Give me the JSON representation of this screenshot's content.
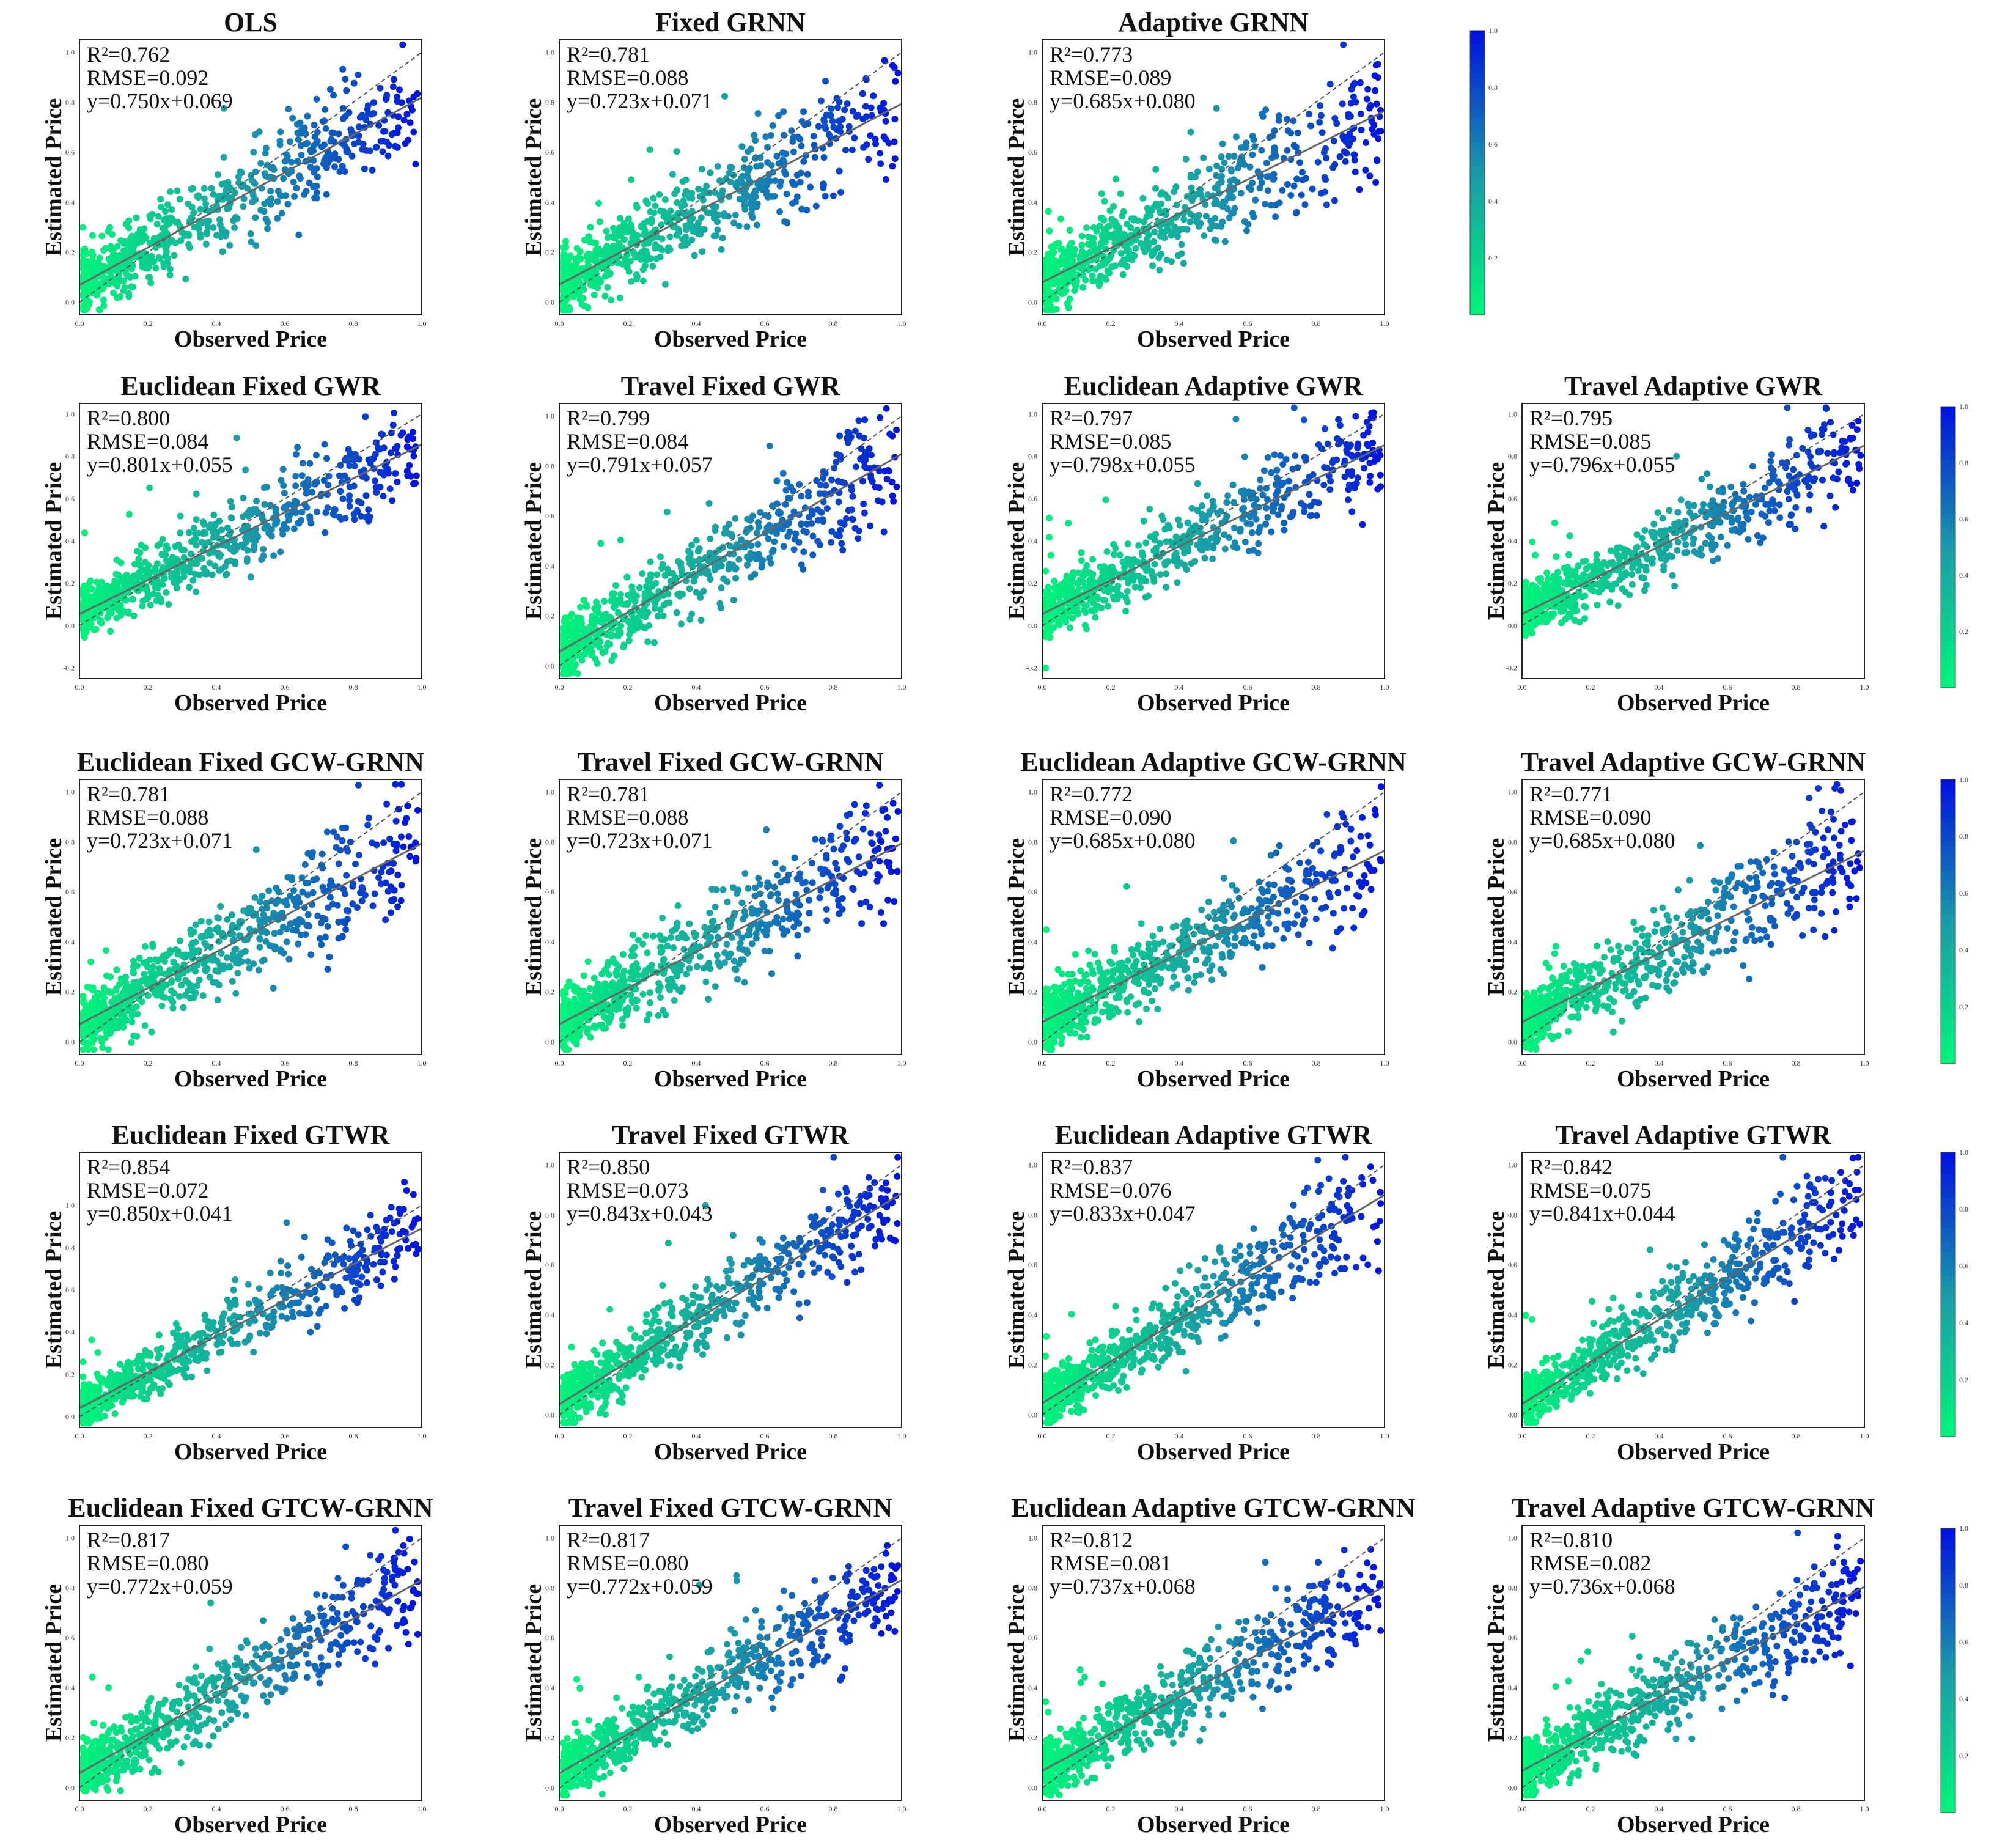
{
  "chart_data": [
    {
      "type": "scatter",
      "title": "OLS",
      "xlabel": "Observed Price",
      "ylabel": "Estimated Price",
      "r2": "R²=0.762",
      "rmse": "RMSE=0.092",
      "eq": "y=0.750x+0.069",
      "slope": 0.75,
      "intercept": 0.069,
      "xlim": [
        0,
        1
      ],
      "ylim": [
        -0.05,
        1.05
      ],
      "xticks": [
        "0.0",
        "0.2",
        "0.4",
        "0.6",
        "0.8",
        "1.0"
      ],
      "yticks": [
        "0.0",
        "0.2",
        "0.4",
        "0.6",
        "0.8",
        "1.0"
      ],
      "spread": 0.08,
      "noise_seed": 1
    },
    {
      "type": "scatter",
      "title": "Fixed GRNN",
      "xlabel": "Observed Price",
      "ylabel": "Estimated Price",
      "r2": "R²=0.781",
      "rmse": "RMSE=0.088",
      "eq": "y=0.723x+0.071",
      "slope": 0.723,
      "intercept": 0.071,
      "xlim": [
        0,
        1
      ],
      "ylim": [
        -0.05,
        1.05
      ],
      "xticks": [
        "0.0",
        "0.2",
        "0.4",
        "0.6",
        "0.8",
        "1.0"
      ],
      "yticks": [
        "0.0",
        "0.2",
        "0.4",
        "0.6",
        "0.8",
        "1.0"
      ],
      "spread": 0.08,
      "noise_seed": 2
    },
    {
      "type": "scatter",
      "title": "Adaptive GRNN",
      "xlabel": "Observed Price",
      "ylabel": "Estimated Price",
      "r2": "R²=0.773",
      "rmse": "RMSE=0.089",
      "eq": "y=0.685x+0.080",
      "slope": 0.685,
      "intercept": 0.08,
      "xlim": [
        0,
        1
      ],
      "ylim": [
        -0.05,
        1.05
      ],
      "xticks": [
        "0.0",
        "0.2",
        "0.4",
        "0.6",
        "0.8",
        "1.0"
      ],
      "yticks": [
        "0.0",
        "0.2",
        "0.4",
        "0.6",
        "0.8",
        "1.0"
      ],
      "spread": 0.08,
      "noise_seed": 3
    },
    {
      "type": "scatter",
      "title": "Euclidean Fixed GWR",
      "xlabel": "Observed Price",
      "ylabel": "Estimated Price",
      "r2": "R²=0.800",
      "rmse": "RMSE=0.084",
      "eq": "y=0.801x+0.055",
      "slope": 0.801,
      "intercept": 0.055,
      "xlim": [
        0,
        1
      ],
      "ylim": [
        -0.25,
        1.05
      ],
      "xticks": [
        "0.0",
        "0.2",
        "0.4",
        "0.6",
        "0.8",
        "1.0"
      ],
      "yticks": [
        "-0.2",
        "0.0",
        "0.2",
        "0.4",
        "0.6",
        "0.8",
        "1.0"
      ],
      "spread": 0.075,
      "noise_seed": 4
    },
    {
      "type": "scatter",
      "title": "Travel Fixed GWR",
      "xlabel": "Observed Price",
      "ylabel": "Estimated Price",
      "r2": "R²=0.799",
      "rmse": "RMSE=0.084",
      "eq": "y=0.791x+0.057",
      "slope": 0.791,
      "intercept": 0.057,
      "xlim": [
        0,
        1
      ],
      "ylim": [
        -0.05,
        1.05
      ],
      "xticks": [
        "0.0",
        "0.2",
        "0.4",
        "0.6",
        "0.8",
        "1.0"
      ],
      "yticks": [
        "0.0",
        "0.2",
        "0.4",
        "0.6",
        "0.8",
        "1.0"
      ],
      "spread": 0.075,
      "noise_seed": 5
    },
    {
      "type": "scatter",
      "title": "Euclidean Adaptive GWR",
      "xlabel": "Observed Price",
      "ylabel": "Estimated Price",
      "r2": "R²=0.797",
      "rmse": "RMSE=0.085",
      "eq": "y=0.798x+0.055",
      "slope": 0.798,
      "intercept": 0.055,
      "xlim": [
        0,
        1
      ],
      "ylim": [
        -0.25,
        1.05
      ],
      "xticks": [
        "0.0",
        "0.2",
        "0.4",
        "0.6",
        "0.8",
        "1.0"
      ],
      "yticks": [
        "-0.2",
        "0.0",
        "0.2",
        "0.4",
        "0.6",
        "0.8",
        "1.0"
      ],
      "spread": 0.075,
      "noise_seed": 6
    },
    {
      "type": "scatter",
      "title": "Travel Adaptive GWR",
      "xlabel": "Observed Price",
      "ylabel": "Estimated Price",
      "r2": "R²=0.795",
      "rmse": "RMSE=0.085",
      "eq": "y=0.796x+0.055",
      "slope": 0.796,
      "intercept": 0.055,
      "xlim": [
        0,
        1
      ],
      "ylim": [
        -0.25,
        1.05
      ],
      "xticks": [
        "0.0",
        "0.2",
        "0.4",
        "0.6",
        "0.8",
        "1.0"
      ],
      "yticks": [
        "-0.2",
        "0.0",
        "0.2",
        "0.4",
        "0.6",
        "0.8",
        "1.0"
      ],
      "spread": 0.075,
      "noise_seed": 7
    },
    {
      "type": "scatter",
      "title": "Euclidean Fixed GCW-GRNN",
      "xlabel": "Observed Price",
      "ylabel": "Estimated Price",
      "r2": "R²=0.781",
      "rmse": "RMSE=0.088",
      "eq": "y=0.723x+0.071",
      "slope": 0.723,
      "intercept": 0.071,
      "xlim": [
        0,
        1
      ],
      "ylim": [
        -0.05,
        1.05
      ],
      "xticks": [
        "0.0",
        "0.2",
        "0.4",
        "0.6",
        "0.8",
        "1.0"
      ],
      "yticks": [
        "0.0",
        "0.2",
        "0.4",
        "0.6",
        "0.8",
        "1.0"
      ],
      "spread": 0.08,
      "noise_seed": 8
    },
    {
      "type": "scatter",
      "title": "Travel Fixed GCW-GRNN",
      "xlabel": "Observed Price",
      "ylabel": "Estimated Price",
      "r2": "R²=0.781",
      "rmse": "RMSE=0.088",
      "eq": "y=0.723x+0.071",
      "slope": 0.723,
      "intercept": 0.071,
      "xlim": [
        0,
        1
      ],
      "ylim": [
        -0.05,
        1.05
      ],
      "xticks": [
        "0.0",
        "0.2",
        "0.4",
        "0.6",
        "0.8",
        "1.0"
      ],
      "yticks": [
        "0.0",
        "0.2",
        "0.4",
        "0.6",
        "0.8",
        "1.0"
      ],
      "spread": 0.08,
      "noise_seed": 9
    },
    {
      "type": "scatter",
      "title": "Euclidean Adaptive GCW-GRNN",
      "xlabel": "Observed Price",
      "ylabel": "Estimated Price",
      "r2": "R²=0.772",
      "rmse": "RMSE=0.090",
      "eq": "y=0.685x+0.080",
      "slope": 0.685,
      "intercept": 0.08,
      "xlim": [
        0,
        1
      ],
      "ylim": [
        -0.05,
        1.05
      ],
      "xticks": [
        "0.0",
        "0.2",
        "0.4",
        "0.6",
        "0.8",
        "1.0"
      ],
      "yticks": [
        "0.0",
        "0.2",
        "0.4",
        "0.6",
        "0.8",
        "1.0"
      ],
      "spread": 0.08,
      "noise_seed": 10
    },
    {
      "type": "scatter",
      "title": "Travel Adaptive GCW-GRNN",
      "xlabel": "Observed Price",
      "ylabel": "Estimated Price",
      "r2": "R²=0.771",
      "rmse": "RMSE=0.090",
      "eq": "y=0.685x+0.080",
      "slope": 0.685,
      "intercept": 0.08,
      "xlim": [
        0,
        1
      ],
      "ylim": [
        -0.05,
        1.05
      ],
      "xticks": [
        "0.0",
        "0.2",
        "0.4",
        "0.6",
        "0.8",
        "1.0"
      ],
      "yticks": [
        "0.0",
        "0.2",
        "0.4",
        "0.6",
        "0.8",
        "1.0"
      ],
      "spread": 0.08,
      "noise_seed": 11
    },
    {
      "type": "scatter",
      "title": "Euclidean Fixed GTWR",
      "xlabel": "Observed Price",
      "ylabel": "Estimated Price",
      "r2": "R²=0.854",
      "rmse": "RMSE=0.072",
      "eq": "y=0.850x+0.041",
      "slope": 0.85,
      "intercept": 0.041,
      "xlim": [
        0,
        1
      ],
      "ylim": [
        -0.05,
        1.25
      ],
      "xticks": [
        "0.0",
        "0.2",
        "0.4",
        "0.6",
        "0.8",
        "1.0"
      ],
      "yticks": [
        "0.0",
        "0.2",
        "0.4",
        "0.6",
        "0.8",
        "1.0"
      ],
      "spread": 0.065,
      "noise_seed": 12
    },
    {
      "type": "scatter",
      "title": "Travel Fixed GTWR",
      "xlabel": "Observed Price",
      "ylabel": "Estimated Price",
      "r2": "R²=0.850",
      "rmse": "RMSE=0.073",
      "eq": "y=0.843x+0.043",
      "slope": 0.843,
      "intercept": 0.043,
      "xlim": [
        0,
        1
      ],
      "ylim": [
        -0.05,
        1.05
      ],
      "xticks": [
        "0.0",
        "0.2",
        "0.4",
        "0.6",
        "0.8",
        "1.0"
      ],
      "yticks": [
        "0.0",
        "0.2",
        "0.4",
        "0.6",
        "0.8",
        "1.0"
      ],
      "spread": 0.065,
      "noise_seed": 13
    },
    {
      "type": "scatter",
      "title": "Euclidean Adaptive GTWR",
      "xlabel": "Observed Price",
      "ylabel": "Estimated Price",
      "r2": "R²=0.837",
      "rmse": "RMSE=0.076",
      "eq": "y=0.833x+0.047",
      "slope": 0.833,
      "intercept": 0.047,
      "xlim": [
        0,
        1
      ],
      "ylim": [
        -0.05,
        1.05
      ],
      "xticks": [
        "0.0",
        "0.2",
        "0.4",
        "0.6",
        "0.8",
        "1.0"
      ],
      "yticks": [
        "0.0",
        "0.2",
        "0.4",
        "0.6",
        "0.8",
        "1.0"
      ],
      "spread": 0.068,
      "noise_seed": 14
    },
    {
      "type": "scatter",
      "title": "Travel Adaptive GTWR",
      "xlabel": "Observed Price",
      "ylabel": "Estimated Price",
      "r2": "R²=0.842",
      "rmse": "RMSE=0.075",
      "eq": "y=0.841x+0.044",
      "slope": 0.841,
      "intercept": 0.044,
      "xlim": [
        0,
        1
      ],
      "ylim": [
        -0.05,
        1.05
      ],
      "xticks": [
        "0.0",
        "0.2",
        "0.4",
        "0.6",
        "0.8",
        "1.0"
      ],
      "yticks": [
        "0.0",
        "0.2",
        "0.4",
        "0.6",
        "0.8",
        "1.0"
      ],
      "spread": 0.068,
      "noise_seed": 15
    },
    {
      "type": "scatter",
      "title": "Euclidean Fixed GTCW-GRNN",
      "xlabel": "Observed Price",
      "ylabel": "Estimated Price",
      "r2": "R²=0.817",
      "rmse": "RMSE=0.080",
      "eq": "y=0.772x+0.059",
      "slope": 0.772,
      "intercept": 0.059,
      "xlim": [
        0,
        1
      ],
      "ylim": [
        -0.05,
        1.05
      ],
      "xticks": [
        "0.0",
        "0.2",
        "0.4",
        "0.6",
        "0.8",
        "1.0"
      ],
      "yticks": [
        "0.0",
        "0.2",
        "0.4",
        "0.6",
        "0.8",
        "1.0"
      ],
      "spread": 0.072,
      "noise_seed": 16
    },
    {
      "type": "scatter",
      "title": "Travel Fixed GTCW-GRNN",
      "xlabel": "Observed Price",
      "ylabel": "Estimated Price",
      "r2": "R²=0.817",
      "rmse": "RMSE=0.080",
      "eq": "y=0.772x+0.059",
      "slope": 0.772,
      "intercept": 0.059,
      "xlim": [
        0,
        1
      ],
      "ylim": [
        -0.05,
        1.05
      ],
      "xticks": [
        "0.0",
        "0.2",
        "0.4",
        "0.6",
        "0.8",
        "1.0"
      ],
      "yticks": [
        "0.0",
        "0.2",
        "0.4",
        "0.6",
        "0.8",
        "1.0"
      ],
      "spread": 0.072,
      "noise_seed": 17
    },
    {
      "type": "scatter",
      "title": "Euclidean Adaptive GTCW-GRNN",
      "xlabel": "Observed Price",
      "ylabel": "Estimated Price",
      "r2": "R²=0.812",
      "rmse": "RMSE=0.081",
      "eq": "y=0.737x+0.068",
      "slope": 0.737,
      "intercept": 0.068,
      "xlim": [
        0,
        1
      ],
      "ylim": [
        -0.05,
        1.05
      ],
      "xticks": [
        "0.0",
        "0.2",
        "0.4",
        "0.6",
        "0.8",
        "1.0"
      ],
      "yticks": [
        "0.0",
        "0.2",
        "0.4",
        "0.6",
        "0.8",
        "1.0"
      ],
      "spread": 0.074,
      "noise_seed": 18
    },
    {
      "type": "scatter",
      "title": "Travel Adaptive GTCW-GRNN",
      "xlabel": "Observed Price",
      "ylabel": "Estimated Price",
      "r2": "R²=0.810",
      "rmse": "RMSE=0.082",
      "eq": "y=0.736x+0.068",
      "slope": 0.736,
      "intercept": 0.068,
      "xlim": [
        0,
        1
      ],
      "ylim": [
        -0.05,
        1.05
      ],
      "xticks": [
        "0.0",
        "0.2",
        "0.4",
        "0.6",
        "0.8",
        "1.0"
      ],
      "yticks": [
        "0.0",
        "0.2",
        "0.4",
        "0.6",
        "0.8",
        "1.0"
      ],
      "spread": 0.074,
      "noise_seed": 19
    }
  ],
  "colorbar": {
    "ticks": [
      "0.2",
      "0.4",
      "0.6",
      "0.8",
      "1.0"
    ],
    "colors": {
      "low": "#00f57a",
      "high": "#0010e0"
    }
  },
  "style": {
    "point_color_low": "#00f57a",
    "point_color_mid": "#1a9aa8",
    "point_color_high": "#0010e0",
    "points_per_panel": 700
  }
}
